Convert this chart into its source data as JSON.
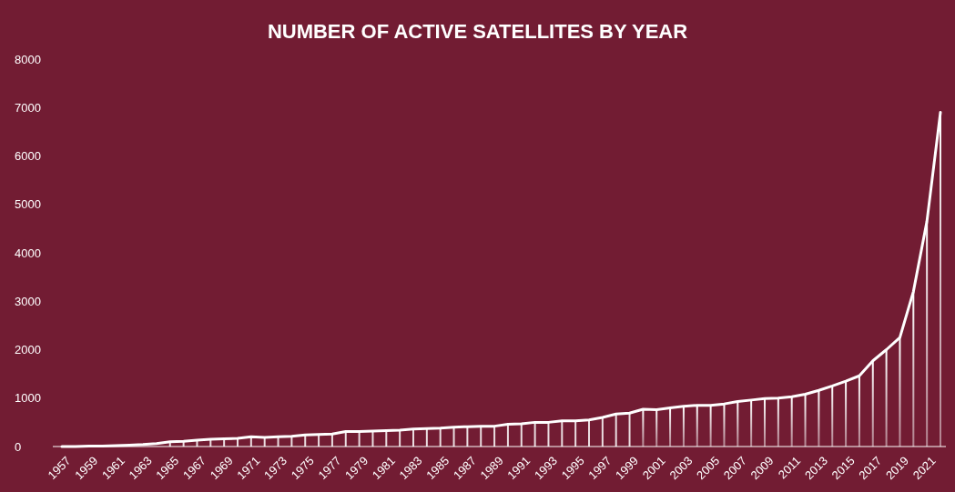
{
  "chart_data": {
    "type": "line",
    "title": "NUMBER OF ACTIVE SATELLITES BY YEAR",
    "categories": [
      "1957",
      null,
      "1959",
      null,
      "1961",
      null,
      "1963",
      null,
      "1965",
      null,
      "1967",
      null,
      "1969",
      null,
      "1971",
      null,
      "1973",
      null,
      "1975",
      null,
      "1977",
      null,
      "1979",
      null,
      "1981",
      null,
      "1983",
      null,
      "1985",
      null,
      "1987",
      null,
      "1989",
      null,
      "1991",
      null,
      "1993",
      null,
      "1995",
      null,
      "1997",
      null,
      "1999",
      null,
      "2001",
      null,
      "2003",
      null,
      "2005",
      null,
      "2007",
      null,
      "2009",
      null,
      "2011",
      null,
      "2013",
      null,
      "2015",
      null,
      "2017",
      null,
      "2019",
      null,
      "2021",
      null
    ],
    "series": [
      {
        "color": "#ffffff",
        "values": [
          0,
          0,
          10,
          10,
          20,
          30,
          40,
          60,
          100,
          110,
          130,
          150,
          160,
          170,
          200,
          190,
          200,
          210,
          240,
          250,
          260,
          310,
          310,
          320,
          330,
          340,
          360,
          370,
          380,
          400,
          410,
          420,
          420,
          460,
          470,
          500,
          500,
          530,
          530,
          550,
          600,
          670,
          690,
          770,
          760,
          800,
          830,
          850,
          850,
          880,
          930,
          960,
          990,
          1000,
          1030,
          1080,
          1160,
          1250,
          1350,
          1460,
          1770,
          2000,
          2250,
          3200,
          4650,
          6900
        ]
      },
      {
        "type": "bar",
        "color": "#ffffff",
        "values": [
          null,
          null,
          null,
          null,
          null,
          null,
          null,
          null,
          100,
          110,
          130,
          150,
          160,
          170,
          200,
          190,
          200,
          210,
          240,
          250,
          260,
          310,
          310,
          320,
          330,
          340,
          360,
          370,
          380,
          400,
          410,
          420,
          420,
          460,
          470,
          500,
          500,
          530,
          530,
          550,
          600,
          670,
          690,
          770,
          760,
          800,
          830,
          850,
          850,
          880,
          930,
          960,
          990,
          1000,
          1030,
          1080,
          1160,
          1250,
          1350,
          1460,
          1770,
          2000,
          2250,
          3200,
          4650,
          6900
        ]
      }
    ],
    "ylim": [
      0,
      8000
    ],
    "yticks": [
      0,
      1000,
      2000,
      3000,
      4000,
      5000,
      6000,
      7000,
      8000
    ],
    "grid": false,
    "marker": "none",
    "line_style": "solid"
  }
}
